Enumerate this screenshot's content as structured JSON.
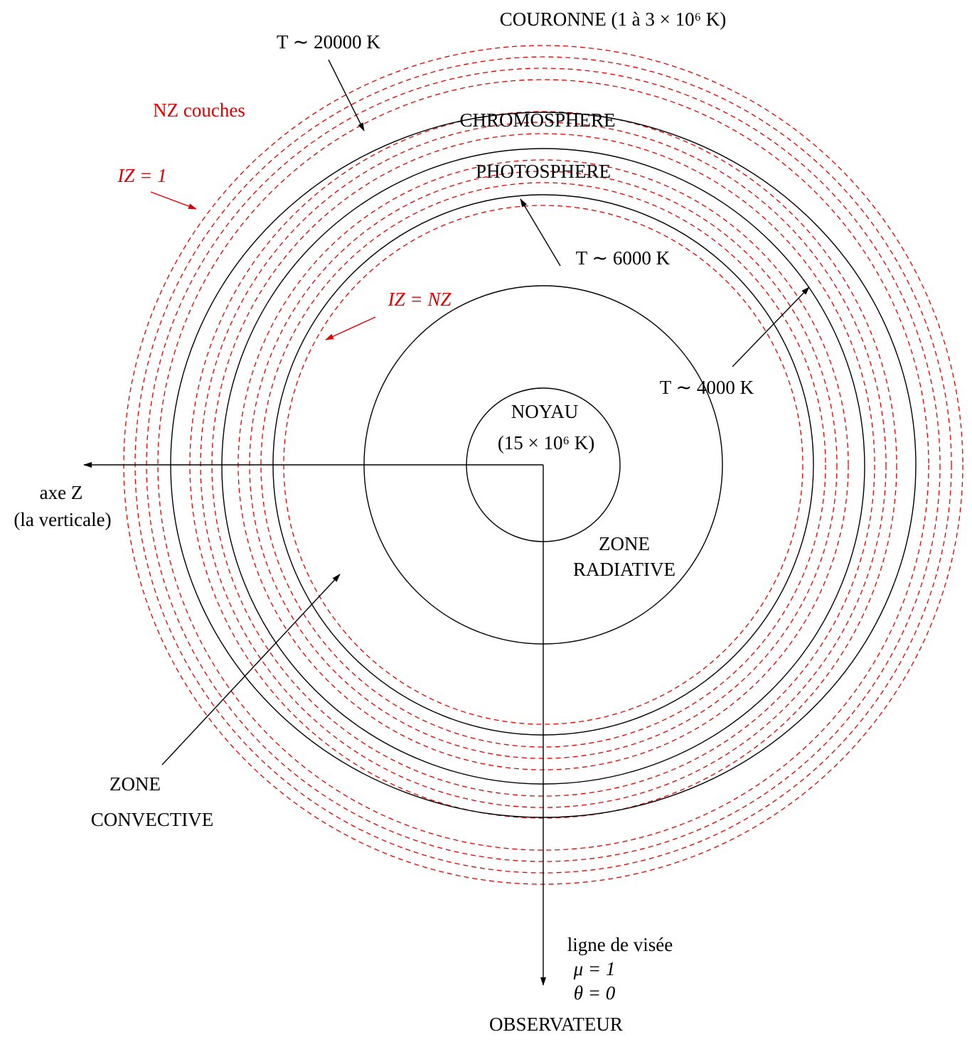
{
  "labels": {
    "corona": "COURONNE (1 à 3 × 10⁶ K)",
    "t20000": "T ∼ 20000 K",
    "nz_layers": "NZ couches",
    "chromosphere": "CHROMOSPHERE",
    "iz1": "IZ = 1",
    "photosphere": "PHOTOSPHERE",
    "t6000": "T ∼ 6000 K",
    "iznz": "IZ = NZ",
    "t4000": "T ∼ 4000 K",
    "core": "NOYAU",
    "core_temp": "(15 × 10⁶ K)",
    "axis_z": "axe Z",
    "axis_z_note": "(la verticale)",
    "radiative_1": "ZONE",
    "radiative_2": "RADIATIVE",
    "convective_1": "ZONE",
    "convective_2": "CONVECTIVE",
    "line_of_sight": "ligne de visée",
    "mu": "μ = 1",
    "theta": "θ = 0",
    "observer": "OBSERVATEUR"
  }
}
